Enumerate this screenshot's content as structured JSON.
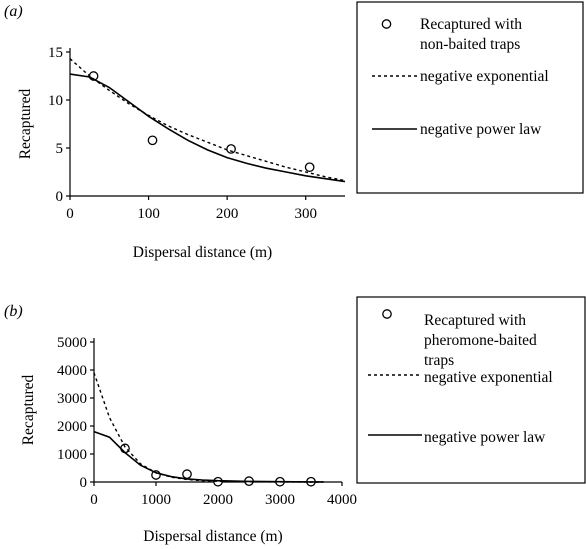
{
  "chart_data": [
    {
      "type": "scatter",
      "panel_label": "(a)",
      "xlabel": "Dispersal distance (m)",
      "ylabel": "Recaptured",
      "xlim": [
        0,
        350
      ],
      "ylim": [
        0,
        15
      ],
      "xticks": [
        0,
        100,
        200,
        300
      ],
      "yticks": [
        0,
        5,
        10,
        15
      ],
      "grid": false,
      "legend_position": "right",
      "series": [
        {
          "name": "Recaptured with non-baited traps",
          "legend_lines": [
            "Recaptured with",
            "non-baited traps"
          ],
          "kind": "points",
          "x": [
            30,
            105,
            205,
            305
          ],
          "y": [
            12.5,
            5.8,
            4.9,
            3.0
          ]
        },
        {
          "name": "negative exponential",
          "legend_lines": [
            "negative exponential"
          ],
          "kind": "dashed-line",
          "x": [
            0,
            25,
            50,
            75,
            100,
            125,
            150,
            175,
            200,
            225,
            250,
            275,
            300,
            325,
            350
          ],
          "y": [
            14.3,
            12.5,
            11.0,
            9.6,
            8.4,
            7.3,
            6.4,
            5.6,
            4.8,
            4.2,
            3.6,
            3.0,
            2.5,
            2.0,
            1.6
          ]
        },
        {
          "name": "negative power law",
          "legend_lines": [
            "negative power law"
          ],
          "kind": "solid-line",
          "x": [
            0,
            25,
            50,
            75,
            100,
            125,
            150,
            175,
            200,
            225,
            250,
            275,
            300,
            325,
            350
          ],
          "y": [
            12.7,
            12.4,
            11.3,
            9.8,
            8.3,
            7.0,
            5.8,
            4.8,
            4.0,
            3.4,
            2.9,
            2.5,
            2.1,
            1.8,
            1.5
          ]
        }
      ]
    },
    {
      "type": "scatter",
      "panel_label": "(b)",
      "xlabel": "Dispersal distance (m)",
      "ylabel": "Recaptured",
      "xlim": [
        0,
        4000
      ],
      "ylim": [
        0,
        5000
      ],
      "xticks": [
        0,
        1000,
        2000,
        3000,
        4000
      ],
      "yticks": [
        0,
        1000,
        2000,
        3000,
        4000,
        5000
      ],
      "grid": false,
      "legend_position": "right",
      "series": [
        {
          "name": "Recaptured with pheromone-baited traps",
          "legend_lines": [
            "Recaptured with",
            "pheromone-baited",
            "traps"
          ],
          "kind": "points",
          "x": [
            500,
            1000,
            1500,
            2000,
            2500,
            3000,
            3500
          ],
          "y": [
            1200,
            250,
            280,
            10,
            30,
            10,
            10
          ]
        },
        {
          "name": "negative exponential",
          "legend_lines": [
            "negative exponential"
          ],
          "kind": "dashed-line",
          "x": [
            0,
            250,
            500,
            750,
            1000,
            1250,
            1500,
            1750,
            2000,
            2500,
            3000,
            3500,
            3700
          ],
          "y": [
            3900,
            2300,
            1250,
            650,
            330,
            170,
            90,
            45,
            25,
            8,
            3,
            1,
            1
          ]
        },
        {
          "name": "negative power law",
          "legend_lines": [
            "negative power law"
          ],
          "kind": "solid-line",
          "x": [
            0,
            250,
            500,
            750,
            1000,
            1250,
            1500,
            1750,
            2000,
            2500,
            3000,
            3500,
            3700
          ],
          "y": [
            1800,
            1600,
            1050,
            600,
            330,
            190,
            110,
            70,
            45,
            20,
            10,
            5,
            4
          ]
        }
      ]
    }
  ]
}
